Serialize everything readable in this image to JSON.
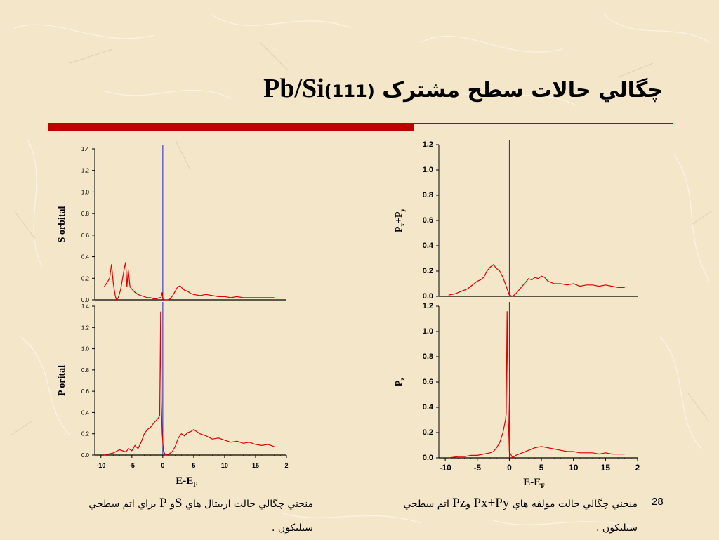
{
  "slide": {
    "title_fa": "چگالي حالات سطح مشترک",
    "title_formula": "Pb/Si",
    "title_index": "(111)",
    "page_number": "28"
  },
  "captions": {
    "left": {
      "part1": "منحني چگالي حالت اربيتال هاي",
      "s": "S",
      "and": "و",
      "p": "P",
      "part2": "براي اتم   سطحي",
      "line2": "سيليكون ."
    },
    "right": {
      "part1": "منحني چگالي حالت مولفه هاي",
      "pxpy": "Px+Py",
      "and": "و",
      "pz": "Pz",
      "part2": "اتم  سطحي",
      "line2": "سيليكون ."
    }
  },
  "colors": {
    "curve": "#e00000",
    "fermi_line": "#2222cc",
    "accent_bar": "#c00000"
  },
  "chart_data": [
    {
      "type": "line",
      "ylabel": "S orbital",
      "ylim": [
        0,
        1.4
      ],
      "yticks": [
        "0.0",
        "0.2",
        "0.4",
        "0.6",
        "0.8",
        "1.0",
        "1.2",
        "1.4"
      ],
      "fermi_level": 0,
      "series": [
        {
          "x": [
            -9.5,
            -9,
            -8.6,
            -8.3,
            -8,
            -7.7,
            -7.5,
            -7.2,
            -6.8,
            -6.5,
            -6.2,
            -6,
            -5.8,
            -5.6,
            -5.3,
            -5,
            -4.5,
            -4,
            -3.5,
            -3,
            -2.5,
            -2,
            -1.5,
            -1,
            -0.6,
            -0.3,
            -0.1,
            0,
            0.3,
            0.8,
            1.2,
            1.6,
            2,
            2.4,
            2.8,
            3.1,
            3.5,
            4,
            4.5,
            5,
            6,
            7,
            8,
            9,
            10,
            11,
            12,
            13,
            14,
            15,
            16,
            17,
            18
          ],
          "y": [
            0.12,
            0.16,
            0.2,
            0.33,
            0.15,
            0.04,
            0.0,
            0.02,
            0.1,
            0.2,
            0.3,
            0.35,
            0.12,
            0.28,
            0.12,
            0.1,
            0.07,
            0.05,
            0.04,
            0.03,
            0.02,
            0.02,
            0.01,
            0.01,
            0.02,
            0.02,
            0.07,
            0.01,
            0.0,
            0.0,
            0.01,
            0.04,
            0.08,
            0.12,
            0.13,
            0.11,
            0.09,
            0.08,
            0.06,
            0.05,
            0.04,
            0.05,
            0.04,
            0.03,
            0.03,
            0.02,
            0.03,
            0.02,
            0.02,
            0.02,
            0.02,
            0.02,
            0.02
          ]
        }
      ]
    },
    {
      "type": "line",
      "ylabel": "P orital",
      "xlabel": "E-E",
      "xlabel_sub": "F",
      "xlim": [
        -11,
        20
      ],
      "xticks": [
        "-10",
        "-5",
        "0",
        "5",
        "10",
        "15",
        "2"
      ],
      "ylim": [
        0,
        1.4
      ],
      "yticks": [
        "0.0",
        "0.2",
        "0.4",
        "0.6",
        "0.8",
        "1.0",
        "1.2",
        "1.4"
      ],
      "fermi_level": 0,
      "series": [
        {
          "x": [
            -9.5,
            -8,
            -7,
            -6,
            -5.5,
            -5,
            -4.5,
            -4,
            -3.5,
            -3,
            -2.5,
            -2,
            -1.5,
            -1,
            -0.7,
            -0.5,
            -0.35,
            -0.25,
            -0.1,
            0.1,
            0.4,
            1,
            1.5,
            2,
            2.5,
            3,
            3.5,
            4,
            4.5,
            5,
            5.5,
            6,
            6.5,
            7,
            8,
            9,
            10,
            11,
            12,
            13,
            14,
            15,
            16,
            17,
            18
          ],
          "y": [
            0.0,
            0.02,
            0.05,
            0.03,
            0.06,
            0.04,
            0.09,
            0.06,
            0.12,
            0.2,
            0.24,
            0.26,
            0.3,
            0.33,
            0.35,
            0.37,
            1.35,
            0.5,
            0.2,
            0.04,
            0.0,
            0.01,
            0.03,
            0.08,
            0.16,
            0.2,
            0.18,
            0.21,
            0.22,
            0.24,
            0.22,
            0.2,
            0.19,
            0.18,
            0.15,
            0.16,
            0.14,
            0.12,
            0.13,
            0.11,
            0.12,
            0.1,
            0.09,
            0.1,
            0.08
          ]
        }
      ]
    },
    {
      "type": "line",
      "ylabel": "P",
      "ylabel_subs": [
        "x",
        "+P",
        "y"
      ],
      "ylim": [
        0,
        1.2
      ],
      "yticks": [
        "0.0",
        "0.2",
        "0.4",
        "0.6",
        "0.8",
        "1.0",
        "1.2"
      ],
      "fermi_level": 0,
      "series": [
        {
          "x": [
            -9.5,
            -8.5,
            -7.5,
            -6.5,
            -6,
            -5.5,
            -5,
            -4.5,
            -4,
            -3.5,
            -3,
            -2.5,
            -2,
            -1.5,
            -1,
            -0.5,
            0,
            0.5,
            1,
            1.5,
            2,
            2.5,
            3,
            3.5,
            4,
            4.5,
            5,
            5.5,
            6,
            7,
            8,
            9,
            10,
            11,
            12,
            13,
            14,
            15,
            16,
            17,
            18
          ],
          "y": [
            0.01,
            0.02,
            0.04,
            0.06,
            0.08,
            0.1,
            0.12,
            0.13,
            0.15,
            0.2,
            0.23,
            0.25,
            0.22,
            0.2,
            0.15,
            0.08,
            0.01,
            0.0,
            0.02,
            0.05,
            0.08,
            0.11,
            0.14,
            0.13,
            0.15,
            0.14,
            0.16,
            0.15,
            0.12,
            0.1,
            0.1,
            0.09,
            0.1,
            0.08,
            0.09,
            0.09,
            0.08,
            0.09,
            0.08,
            0.07,
            0.07
          ]
        }
      ]
    },
    {
      "type": "line",
      "ylabel": "P",
      "ylabel_subs": [
        "z"
      ],
      "xlabel": "E-E",
      "xlabel_sub": "F",
      "xlim": [
        -11,
        20
      ],
      "xticks": [
        "-10",
        "-5",
        "0",
        "5",
        "10",
        "15",
        "2"
      ],
      "ylim": [
        0,
        1.2
      ],
      "yticks": [
        "0.0",
        "0.2",
        "0.4",
        "0.6",
        "0.8",
        "1.0",
        "1.2"
      ],
      "fermi_level": 0,
      "series": [
        {
          "x": [
            -9.5,
            -8,
            -7,
            -6,
            -5,
            -4,
            -3,
            -2.5,
            -2,
            -1.5,
            -1,
            -0.8,
            -0.6,
            -0.5,
            -0.35,
            -0.2,
            0,
            0.5,
            1,
            2,
            3,
            4,
            5,
            6,
            7,
            8,
            9,
            10,
            11,
            12,
            13,
            14,
            15,
            16,
            17,
            18
          ],
          "y": [
            0.0,
            0.01,
            0.01,
            0.02,
            0.02,
            0.03,
            0.04,
            0.05,
            0.08,
            0.12,
            0.2,
            0.25,
            0.3,
            0.35,
            1.16,
            0.4,
            0.05,
            0.0,
            0.02,
            0.04,
            0.06,
            0.08,
            0.09,
            0.08,
            0.07,
            0.06,
            0.05,
            0.05,
            0.04,
            0.04,
            0.04,
            0.03,
            0.04,
            0.03,
            0.03,
            0.03
          ]
        }
      ]
    }
  ]
}
